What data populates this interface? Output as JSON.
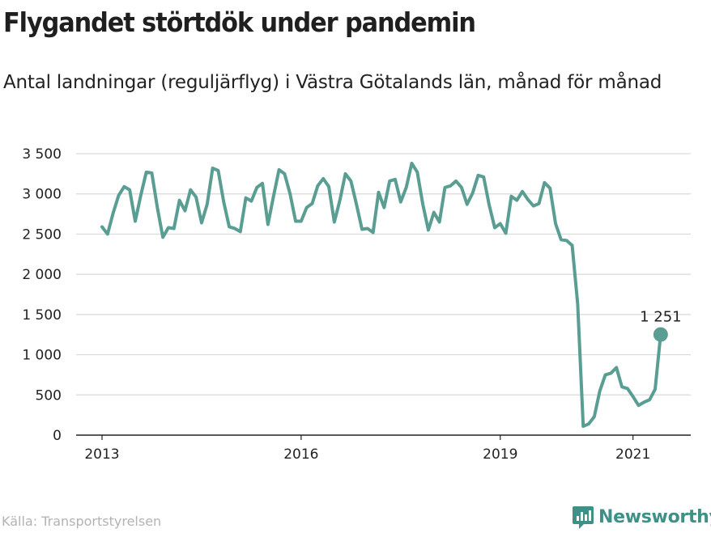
{
  "header": {
    "title": "Flygandet störtdök under pandemin",
    "subtitle": "Antal landningar (reguljärflyg) i Västra Götalands län, månad för månad"
  },
  "footer": {
    "source": "Källa: Transportstyrelsen",
    "brand": "Newsworthy",
    "brand_icon": "newsworthy-chart-logo-icon"
  },
  "colors": {
    "line": "#5a9e93",
    "grid": "#d9d9d9",
    "axis": "#222222",
    "brand": "#3f9188"
  },
  "chart_data": {
    "type": "line",
    "title": "Flygandet störtdök under pandemin",
    "subtitle": "Antal landningar (reguljärflyg) i Västra Götalands län, månad för månad",
    "x_start": "2013-01",
    "x_frequency": "monthly",
    "xlabel": "",
    "ylabel": "",
    "ylim": [
      0,
      3500
    ],
    "yticks": [
      0,
      500,
      1000,
      1500,
      2000,
      2500,
      3000,
      3500
    ],
    "ytick_labels": [
      "0",
      "500",
      "1 000",
      "1 500",
      "2 000",
      "2 500",
      "3 000",
      "3 500"
    ],
    "xticks": [
      "2013",
      "2016",
      "2019",
      "2021"
    ],
    "grid": true,
    "series": [
      {
        "values": [
          2590,
          2500,
          2760,
          2980,
          3090,
          3050,
          2660,
          2980,
          3270,
          3260,
          2830,
          2460,
          2580,
          2570,
          2920,
          2790,
          3050,
          2960,
          2640,
          2870,
          3320,
          3290,
          2900,
          2590,
          2570,
          2530,
          2950,
          2910,
          3080,
          3130,
          2620,
          2970,
          3300,
          3250,
          3000,
          2660,
          2660,
          2830,
          2880,
          3100,
          3190,
          3090,
          2650,
          2920,
          3250,
          3160,
          2870,
          2560,
          2570,
          2520,
          3020,
          2830,
          3160,
          3180,
          2900,
          3080,
          3380,
          3270,
          2870,
          2550,
          2770,
          2650,
          3080,
          3100,
          3160,
          3080,
          2870,
          3010,
          3230,
          3210,
          2860,
          2580,
          2630,
          2510,
          2970,
          2920,
          3030,
          2930,
          2850,
          2880,
          3140,
          3070,
          2630,
          2430,
          2420,
          2360,
          1630,
          110,
          140,
          230,
          550,
          750,
          770,
          840,
          600,
          580,
          480,
          370,
          410,
          440,
          570,
          1251
        ]
      }
    ],
    "annotations": [
      {
        "label": "1 251",
        "x": "2021-06",
        "y": 1251
      }
    ]
  }
}
